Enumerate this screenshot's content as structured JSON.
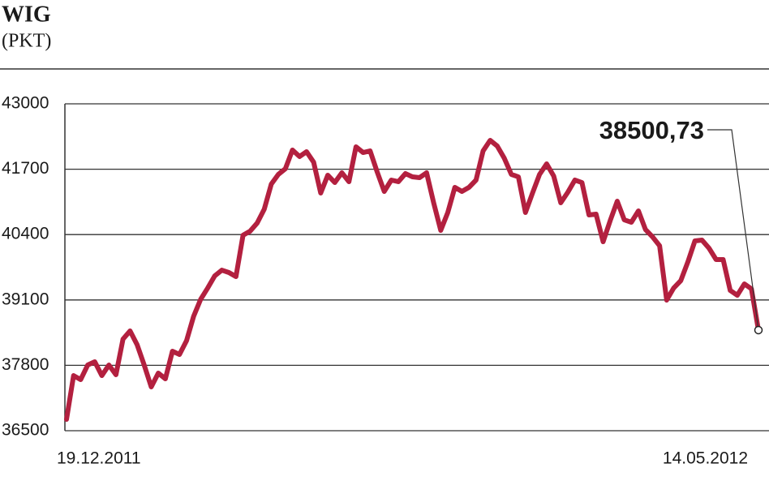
{
  "chart_data": {
    "type": "line",
    "title": "WIG",
    "subtitle": "(PKT)",
    "categories": [
      "19.12.2011",
      null,
      null,
      null,
      null,
      null,
      null,
      null,
      null,
      null,
      null,
      null,
      null,
      null,
      null,
      null,
      null,
      null,
      null,
      null,
      null,
      null,
      null,
      null,
      null,
      null,
      null,
      null,
      null,
      null,
      null,
      null,
      null,
      null,
      null,
      null,
      null,
      null,
      null,
      null,
      null,
      null,
      null,
      null,
      null,
      null,
      null,
      null,
      null,
      null,
      null,
      null,
      null,
      null,
      null,
      null,
      null,
      null,
      null,
      null,
      null,
      null,
      null,
      null,
      null,
      null,
      null,
      null,
      null,
      null,
      null,
      null,
      null,
      null,
      null,
      null,
      null,
      null,
      null,
      null,
      null,
      null,
      null,
      null,
      null,
      null,
      null,
      null,
      null,
      null,
      null,
      null,
      null,
      null,
      null,
      null,
      null,
      null,
      "14.05.2012"
    ],
    "series": [
      {
        "color": "#b3203f",
        "values": [
          36725,
          37596,
          37516,
          37806,
          37871,
          37596,
          37806,
          37613,
          38322,
          38484,
          38209,
          37806,
          37371,
          37645,
          37532,
          38080,
          38016,
          38290,
          38774,
          39113,
          39338,
          39580,
          39693,
          39645,
          39564,
          40387,
          40468,
          40629,
          40903,
          41403,
          41597,
          41710,
          42081,
          41952,
          42048,
          41839,
          41226,
          41581,
          41435,
          41629,
          41452,
          42145,
          42032,
          42064,
          41645,
          41258,
          41484,
          41452,
          41613,
          41548,
          41532,
          41629,
          41032,
          40484,
          40839,
          41339,
          41258,
          41339,
          41484,
          42064,
          42274,
          42161,
          41919,
          41597,
          41548,
          40839,
          41226,
          41597,
          41806,
          41564,
          41032,
          41242,
          41484,
          41435,
          40790,
          40806,
          40258,
          40677,
          41064,
          40693,
          40645,
          40871,
          40500,
          40355,
          40177,
          39097,
          39338,
          39484,
          39855,
          40274,
          40290,
          40129,
          39903,
          39903,
          39290,
          39193,
          39419,
          39322,
          38500.73
        ],
        "value_labels": [
          null,
          null,
          null,
          null,
          null,
          null,
          null,
          null,
          null,
          null,
          null,
          null,
          null,
          null,
          null,
          null,
          null,
          null,
          null,
          null,
          null,
          null,
          null,
          null,
          null,
          null,
          null,
          null,
          null,
          null,
          null,
          null,
          null,
          null,
          null,
          null,
          null,
          null,
          null,
          null,
          null,
          null,
          null,
          null,
          null,
          null,
          null,
          null,
          null,
          null,
          null,
          null,
          null,
          null,
          null,
          null,
          null,
          null,
          null,
          null,
          null,
          null,
          null,
          null,
          null,
          null,
          null,
          null,
          null,
          null,
          null,
          null,
          null,
          null,
          null,
          null,
          null,
          null,
          null,
          null,
          null,
          null,
          null,
          null,
          null,
          null,
          null,
          null,
          null,
          null,
          null,
          null,
          null,
          null,
          null,
          null,
          null,
          null,
          "38500,73"
        ]
      }
    ],
    "ylim": [
      36500,
      43000
    ],
    "yticks": [
      36500,
      37800,
      39100,
      40400,
      41700,
      43000
    ],
    "grid": true
  }
}
